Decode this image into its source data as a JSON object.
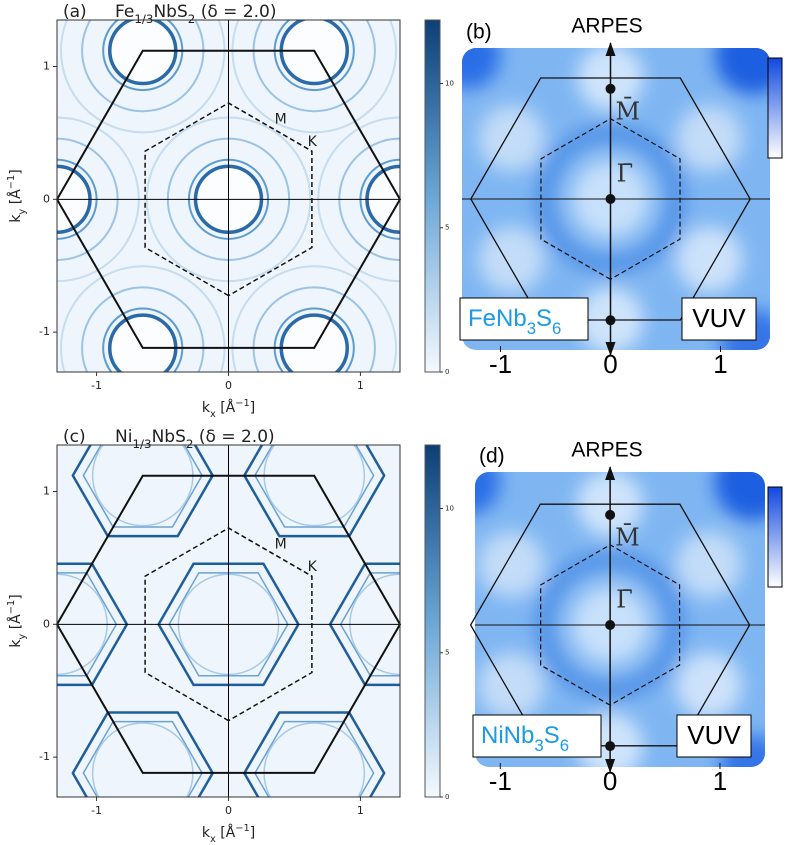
{
  "panels": [
    {
      "tag": "(a)",
      "title": [
        "Fe",
        "1/3",
        "NbS",
        "2",
        " (δ = 2.0)"
      ],
      "xlabel": [
        "k",
        "x",
        " [Å",
        "−1",
        "]"
      ],
      "ylabel": [
        "k",
        "y",
        " [Å",
        "−1",
        "]"
      ],
      "xticks": [
        -1,
        0,
        1
      ],
      "yticks": [
        -1,
        0,
        1
      ],
      "xlim": [
        -1.3,
        1.3
      ],
      "ylim": [
        -1.3,
        1.35
      ],
      "colorbar": {
        "ticks": [
          0,
          5,
          10
        ],
        "lim": [
          0,
          12.2
        ]
      },
      "labels": [
        "M",
        "K"
      ]
    },
    {
      "tag": "(b)",
      "title": "ARPES",
      "xticks": [
        -1,
        0,
        1
      ],
      "xlim": [
        -1.35,
        1.45
      ],
      "ylim": [
        -1.37,
        1.37
      ],
      "sample": [
        "FeNb",
        "3",
        "S",
        "6"
      ],
      "source": "VUV",
      "points": [
        "M̄",
        "Γ̄"
      ]
    },
    {
      "tag": "(c)",
      "title": [
        "Ni",
        "1/3",
        "NbS",
        "2",
        " (δ = 2.0)"
      ],
      "xlabel": [
        "k",
        "x",
        " [Å",
        "−1",
        "]"
      ],
      "ylabel": [
        "k",
        "y",
        " [Å",
        "−1",
        "]"
      ],
      "xticks": [
        -1,
        0,
        1
      ],
      "yticks": [
        -1,
        0,
        1
      ],
      "xlim": [
        -1.3,
        1.3
      ],
      "ylim": [
        -1.3,
        1.35
      ],
      "colorbar": {
        "ticks": [
          0,
          5,
          10
        ],
        "lim": [
          0,
          12.2
        ]
      },
      "labels": [
        "M",
        "K"
      ]
    },
    {
      "tag": "(d)",
      "title": "ARPES",
      "xticks": [
        -1,
        0,
        1
      ],
      "xlim": [
        -1.23,
        1.41
      ],
      "ylim": [
        -1.29,
        1.39
      ],
      "sample": [
        "NiNb",
        "3",
        "S",
        "6"
      ],
      "source": "VUV",
      "points": [
        "M̄",
        "Γ̄"
      ]
    }
  ]
}
